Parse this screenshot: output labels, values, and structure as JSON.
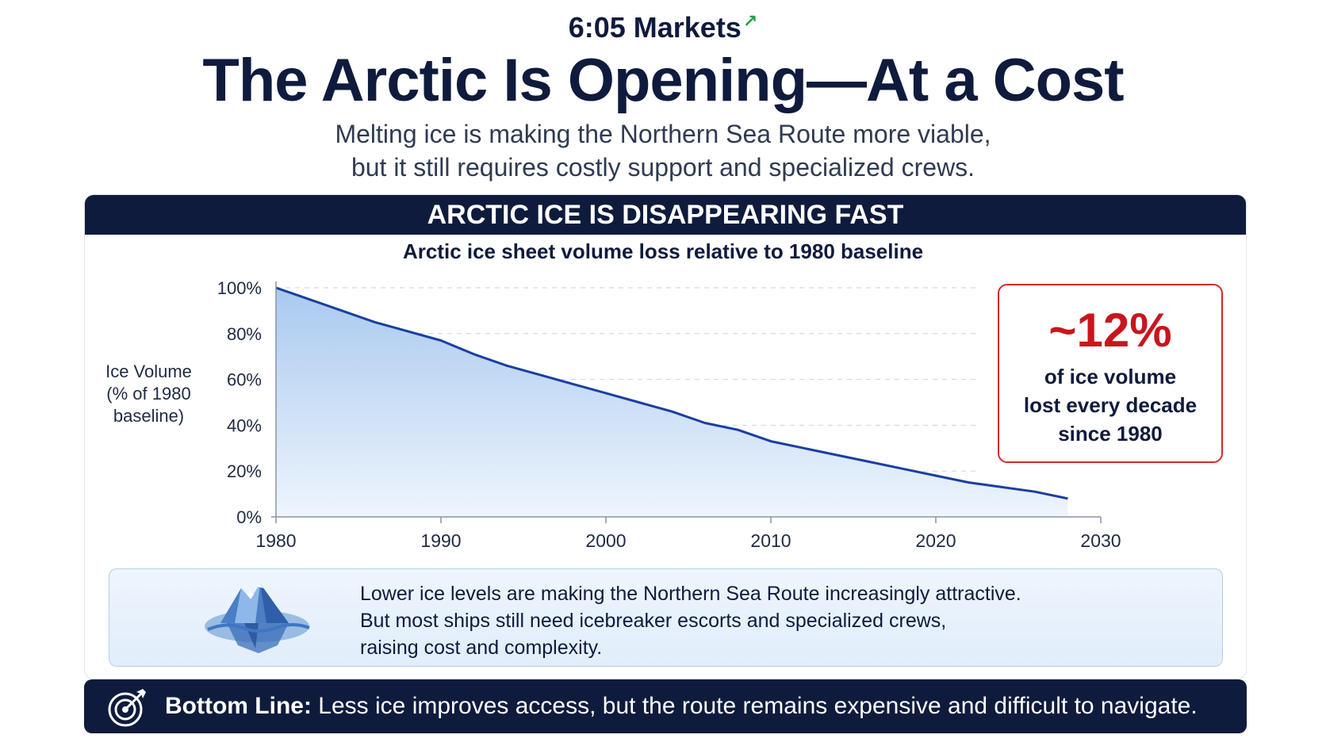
{
  "brand": {
    "name": "6:05 Markets"
  },
  "header": {
    "title": "The Arctic Is Opening—At a Cost",
    "subtitle_line1": "Melting ice is making the Northern Sea Route more viable,",
    "subtitle_line2": "but it still requires costly support and specialized crews."
  },
  "panel": {
    "header": "ARCTIC ICE IS DISAPPEARING FAST"
  },
  "chart_data": {
    "type": "area",
    "title": "Arctic ice sheet volume loss relative to 1980 baseline",
    "ylabel_lines": [
      "Ice Volume",
      "(% of 1980",
      "baseline)"
    ],
    "xlabel": "",
    "xlim": [
      1980,
      2030
    ],
    "ylim": [
      0,
      100
    ],
    "x_ticks": [
      1980,
      1990,
      2000,
      2010,
      2020,
      2030
    ],
    "y_ticks": [
      0,
      20,
      40,
      60,
      80,
      100
    ],
    "y_tick_labels": [
      "0%",
      "20%",
      "40%",
      "60%",
      "80%",
      "100%"
    ],
    "grid": "horizontal-dashed",
    "colors": {
      "line": "#1a3fa0",
      "fill_top": "#a9c9ef",
      "fill_bottom": "#eef5fd"
    },
    "series": [
      {
        "x": [
          1980,
          1982,
          1984,
          1986,
          1988,
          1990,
          1992,
          1994,
          1996,
          1998,
          2000,
          2002,
          2004,
          2006,
          2008,
          2010,
          2012,
          2014,
          2016,
          2018,
          2020,
          2022,
          2024,
          2026,
          2028
        ],
        "values": [
          100,
          95,
          90,
          85,
          81,
          77,
          71,
          66,
          62,
          58,
          54,
          50,
          46,
          41,
          38,
          33,
          30,
          27,
          24,
          21,
          18,
          15,
          13,
          11,
          8
        ]
      }
    ]
  },
  "stat": {
    "value": "~12%",
    "line1": "of ice volume",
    "line2": "lost every decade",
    "line3": "since 1980"
  },
  "note": {
    "line1": "Lower ice levels are making the Northern Sea Route increasingly attractive.",
    "line2": "But most ships still need icebreaker escorts and specialized crews,",
    "line3": "raising cost and complexity."
  },
  "bottom_line": {
    "label": "Bottom Line:",
    "text": " Less ice improves access, but the route remains expensive and difficult to navigate."
  },
  "icons": {
    "iceberg": "iceberg-icon",
    "target": "target-icon",
    "trend_arrow": "trend-up-arrow-icon"
  }
}
